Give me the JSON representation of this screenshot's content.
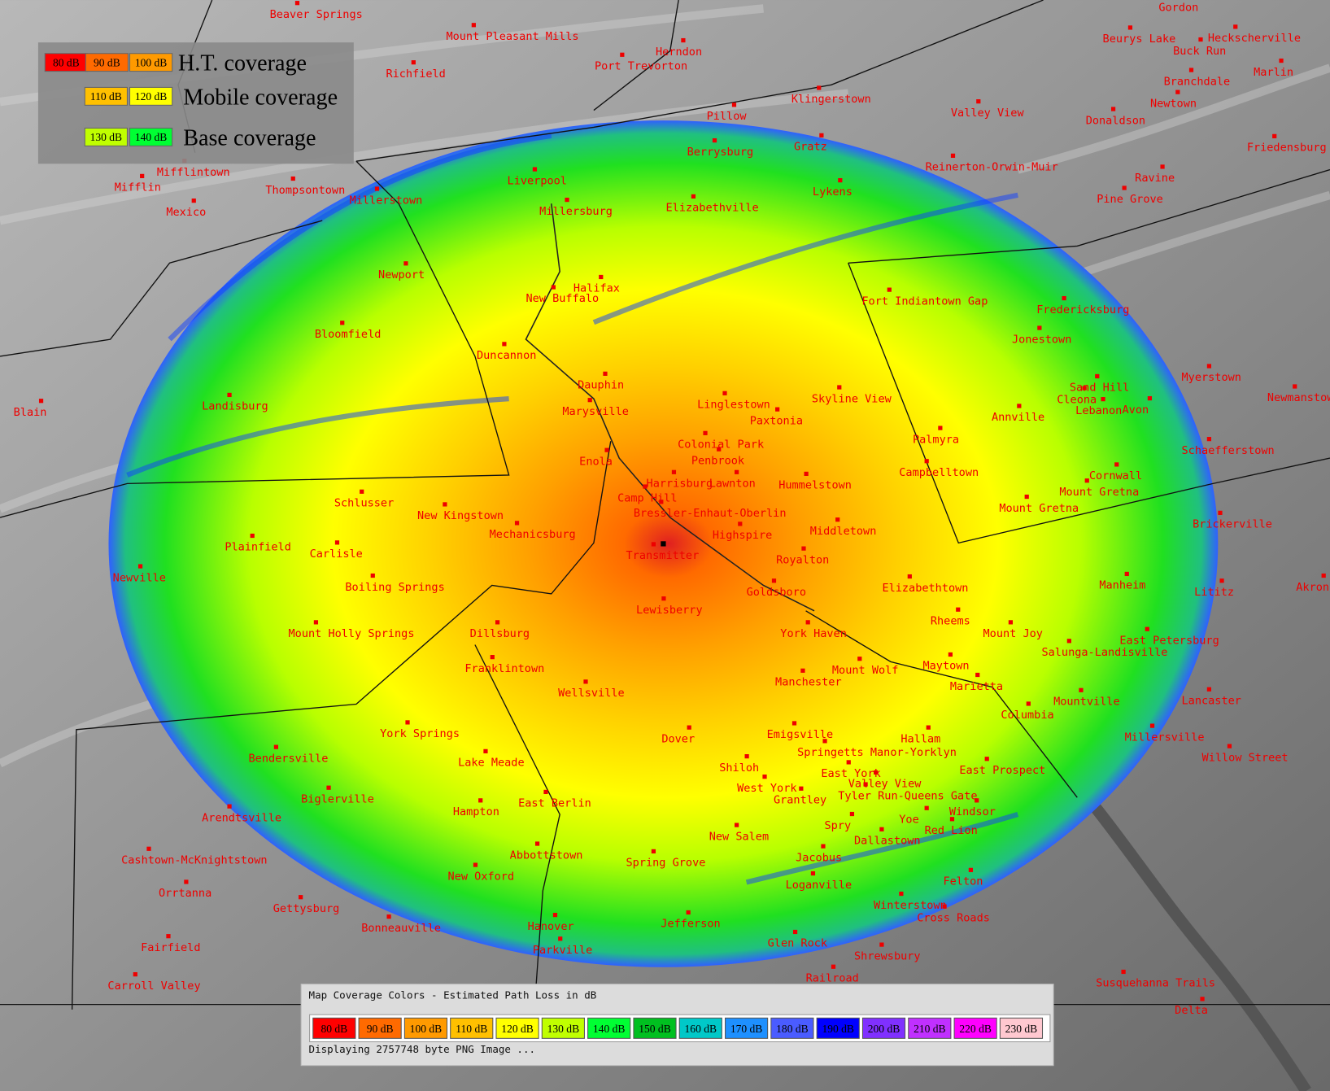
{
  "legend": {
    "rows": [
      {
        "chips": [
          "80 dB",
          "90 dB",
          "100 dB"
        ],
        "label": "H.T. coverage"
      },
      {
        "chips": [
          "110 dB",
          "120 dB"
        ],
        "label": "Mobile coverage"
      },
      {
        "chips": [
          "130 dB",
          "140 dB"
        ],
        "label": "Base coverage"
      }
    ]
  },
  "places": [
    "Beaver Springs",
    "Mount Pleasant Mills",
    "Herndon",
    "Port Trevorton",
    "Richfield",
    "Gordon",
    "Beurys Lake",
    "Heckscherville",
    "Buck Run",
    "Branchdale",
    "Marlin",
    "Klingerstown",
    "Pillow",
    "Valley View",
    "Newtown",
    "Donaldson",
    "Berrysburg",
    "Gratz",
    "Friedensburg",
    "Mifflintown",
    "Mifflin",
    "Thompsontown",
    "Reinerton-Orwin-Muir",
    "Ravine",
    "Liverpool",
    "Millerstown",
    "Lykens",
    "Pine Grove",
    "Mexico",
    "Millersburg",
    "Elizabethville",
    "Newport",
    "Halifax",
    "New Buffalo",
    "Fort Indiantown Gap",
    "Fredericksburg",
    "Bloomfield",
    "Jonestown",
    "Duncannon",
    "Myerstown",
    "Dauphin",
    "Sand Hill",
    "Newmanstown",
    "Landisburg",
    "Linglestown",
    "Skyline View",
    "Cleona",
    "Blain",
    "Marysville",
    "Lebanon",
    "Avon",
    "Annville",
    "Paxtonia",
    "Palmyra",
    "Colonial Park",
    "Schaefferstown",
    "Penbrook",
    "Enola",
    "Campbelltown",
    "Harrisburg",
    "Lawnton",
    "Hummelstown",
    "Cornwall",
    "Mount Gretna",
    "Camp Hill",
    "Schlusser",
    "Mount Gretna",
    "Bressler-Enhaut-Oberlin",
    "New Kingstown",
    "Brickerville",
    "Highspire",
    "Mechanicsburg",
    "Middletown",
    "Plainfield",
    "Carlisle",
    "Transmitter",
    "Royalton",
    "Newville",
    "Boiling Springs",
    "Goldsboro",
    "Elizabethtown",
    "Manheim",
    "Lititz",
    "Akron",
    "Lewisberry",
    "Rheems",
    "Mount Holly Springs",
    "Dillsburg",
    "York Haven",
    "Mount Joy",
    "East Petersburg",
    "Salunga-Landisville",
    "Maytown",
    "Franklintown",
    "Mount Wolf",
    "Manchester",
    "Marietta",
    "Wellsville",
    "Lancaster",
    "Mountville",
    "Columbia",
    "Millersville",
    "York Springs",
    "Dover",
    "Emigsville",
    "Hallam",
    "Springetts Manor-Yorklyn",
    "Willow Street",
    "Bendersville",
    "Lake Meade",
    "Shiloh",
    "East York",
    "East Prospect",
    "Valley View",
    "West York",
    "Grantley",
    "Tyler Run-Queens Gate",
    "Biglerville",
    "East Berlin",
    "Windsor",
    "Hampton",
    "Arendtsville",
    "Spry",
    "Yoe",
    "Red Lion",
    "New Salem",
    "Dallastown",
    "Abbottstown",
    "Jacobus",
    "Cashtown-McKnightstown",
    "Spring Grove",
    "New Oxford",
    "Felton",
    "Loganville",
    "Orrtanna",
    "Winterstown",
    "Gettysburg",
    "Cross Roads",
    "Hanover",
    "Bonneauville",
    "Jefferson",
    "Parkville",
    "Glen Rock",
    "Fairfield",
    "Shrewsbury",
    "Railroad",
    "Susquehanna Trails",
    "Carroll Valley",
    "Delta"
  ],
  "panel": {
    "title": "Map Coverage Colors - Estimated Path Loss in dB",
    "chips": [
      "80 dB",
      "90 dB",
      "100 dB",
      "110 dB",
      "120 dB",
      "130 dB",
      "140 dB",
      "150 dB",
      "160 dB",
      "170 dB",
      "180 dB",
      "190 dB",
      "200 dB",
      "210 dB",
      "220 dB",
      "230 dB"
    ],
    "status": "Displaying 2757748 byte PNG Image ..."
  }
}
